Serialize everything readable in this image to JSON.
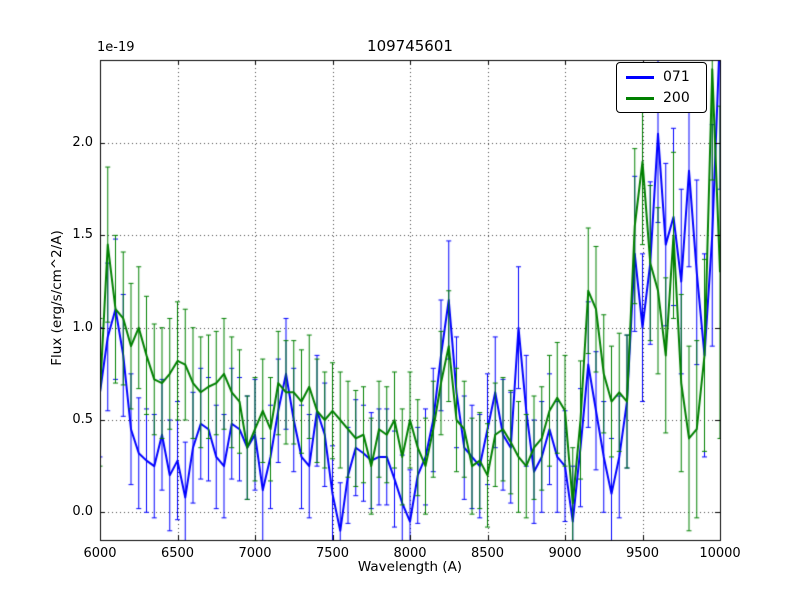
{
  "chart_data": {
    "type": "line",
    "title": "109745601",
    "offset_text": "1e-19",
    "xlabel": "Wavelength (A)",
    "ylabel": "Flux (erg/s/cm^2/A)",
    "xlim": [
      6000,
      10000
    ],
    "ylim": [
      -0.15,
      2.45
    ],
    "xticks": [
      6000,
      6500,
      7000,
      7500,
      8000,
      8500,
      9000,
      9500,
      10000
    ],
    "yticks": [
      0.0,
      0.5,
      1.0,
      1.5,
      2.0
    ],
    "ytick_labels": [
      "0.0",
      "0.5",
      "1.0",
      "1.5",
      "2.0"
    ],
    "grid": true,
    "grid_style": "dotted",
    "legend_position": "upper right",
    "x": [
      6000,
      6050,
      6100,
      6150,
      6200,
      6250,
      6300,
      6350,
      6400,
      6450,
      6500,
      6550,
      6600,
      6650,
      6700,
      6750,
      6800,
      6850,
      6900,
      6950,
      7000,
      7050,
      7100,
      7150,
      7200,
      7250,
      7300,
      7350,
      7400,
      7450,
      7500,
      7550,
      7600,
      7650,
      7700,
      7750,
      7800,
      7850,
      7900,
      7950,
      8000,
      8050,
      8100,
      8150,
      8200,
      8250,
      8300,
      8350,
      8400,
      8450,
      8500,
      8550,
      8600,
      8650,
      8700,
      8750,
      8800,
      8850,
      8900,
      8950,
      9000,
      9050,
      9100,
      9150,
      9200,
      9250,
      9300,
      9350,
      9400,
      9450,
      9500,
      9550,
      9600,
      9650,
      9700,
      9750,
      9800,
      9850,
      9900,
      9950,
      10000
    ],
    "series": [
      {
        "name": "071",
        "color": "#0000ff",
        "values": [
          0.65,
          0.95,
          1.1,
          0.85,
          0.45,
          0.32,
          0.28,
          0.25,
          0.42,
          0.2,
          0.28,
          0.08,
          0.35,
          0.48,
          0.45,
          0.3,
          0.25,
          0.48,
          0.45,
          0.35,
          0.42,
          0.12,
          0.3,
          0.55,
          0.75,
          0.5,
          0.3,
          0.25,
          0.55,
          0.42,
          0.1,
          -0.1,
          0.2,
          0.35,
          0.32,
          0.28,
          0.3,
          0.3,
          0.18,
          0.05,
          -0.05,
          0.2,
          0.3,
          0.5,
          0.85,
          1.15,
          0.65,
          0.35,
          0.3,
          0.25,
          0.45,
          0.65,
          0.42,
          0.35,
          1.0,
          0.55,
          0.22,
          0.3,
          0.45,
          0.3,
          0.25,
          -0.05,
          0.35,
          0.8,
          0.55,
          0.3,
          0.1,
          0.3,
          0.6,
          1.4,
          1.0,
          1.35,
          2.05,
          1.45,
          1.6,
          1.25,
          1.85,
          1.3,
          0.85,
          1.5,
          2.6
        ],
        "yerr": [
          0.35,
          0.4,
          0.38,
          0.33,
          0.3,
          0.3,
          0.28,
          0.28,
          0.3,
          0.3,
          0.32,
          0.3,
          0.3,
          0.3,
          0.28,
          0.28,
          0.28,
          0.3,
          0.28,
          0.28,
          0.3,
          0.28,
          0.28,
          0.28,
          0.3,
          0.28,
          0.28,
          0.28,
          0.3,
          0.28,
          0.26,
          0.26,
          0.26,
          0.26,
          0.26,
          0.26,
          0.26,
          0.26,
          0.26,
          0.26,
          0.28,
          0.26,
          0.26,
          0.28,
          0.3,
          0.32,
          0.3,
          0.28,
          0.28,
          0.28,
          0.3,
          0.3,
          0.3,
          0.3,
          0.33,
          0.3,
          0.28,
          0.3,
          0.3,
          0.3,
          0.3,
          0.3,
          0.32,
          0.34,
          0.32,
          0.3,
          0.3,
          0.33,
          0.36,
          0.42,
          0.4,
          0.44,
          0.48,
          0.44,
          0.48,
          0.5,
          0.52,
          0.5,
          0.55,
          0.6,
          0.85
        ]
      },
      {
        "name": "200",
        "color": "#008000",
        "values": [
          0.65,
          1.45,
          1.1,
          1.05,
          0.9,
          1.0,
          0.85,
          0.72,
          0.7,
          0.75,
          0.82,
          0.8,
          0.7,
          0.65,
          0.68,
          0.7,
          0.75,
          0.65,
          0.6,
          0.35,
          0.45,
          0.55,
          0.45,
          0.7,
          0.65,
          0.65,
          0.6,
          0.68,
          0.55,
          0.5,
          0.55,
          0.5,
          0.45,
          0.4,
          0.42,
          0.25,
          0.45,
          0.42,
          0.5,
          0.3,
          0.5,
          0.35,
          0.25,
          0.45,
          0.7,
          0.9,
          0.5,
          0.45,
          0.25,
          0.28,
          0.2,
          0.42,
          0.45,
          0.38,
          0.3,
          0.25,
          0.35,
          0.4,
          0.55,
          0.62,
          0.55,
          0.05,
          0.5,
          1.2,
          1.1,
          0.75,
          0.6,
          0.65,
          0.6,
          1.55,
          1.9,
          1.35,
          1.2,
          0.85,
          1.5,
          0.7,
          0.4,
          0.45,
          0.85,
          2.4,
          1.3
        ],
        "yerr": [
          0.4,
          0.42,
          0.4,
          0.36,
          0.34,
          0.33,
          0.32,
          0.3,
          0.3,
          0.3,
          0.32,
          0.3,
          0.3,
          0.3,
          0.28,
          0.28,
          0.3,
          0.3,
          0.28,
          0.28,
          0.28,
          0.28,
          0.28,
          0.28,
          0.28,
          0.28,
          0.28,
          0.28,
          0.28,
          0.26,
          0.26,
          0.26,
          0.26,
          0.26,
          0.26,
          0.26,
          0.26,
          0.26,
          0.26,
          0.26,
          0.26,
          0.26,
          0.26,
          0.26,
          0.28,
          0.3,
          0.28,
          0.26,
          0.26,
          0.26,
          0.28,
          0.28,
          0.28,
          0.28,
          0.3,
          0.28,
          0.28,
          0.28,
          0.3,
          0.3,
          0.3,
          0.3,
          0.32,
          0.34,
          0.34,
          0.32,
          0.3,
          0.32,
          0.36,
          0.42,
          0.45,
          0.42,
          0.45,
          0.42,
          0.45,
          0.48,
          0.5,
          0.48,
          0.52,
          0.6,
          0.9
        ]
      }
    ]
  }
}
